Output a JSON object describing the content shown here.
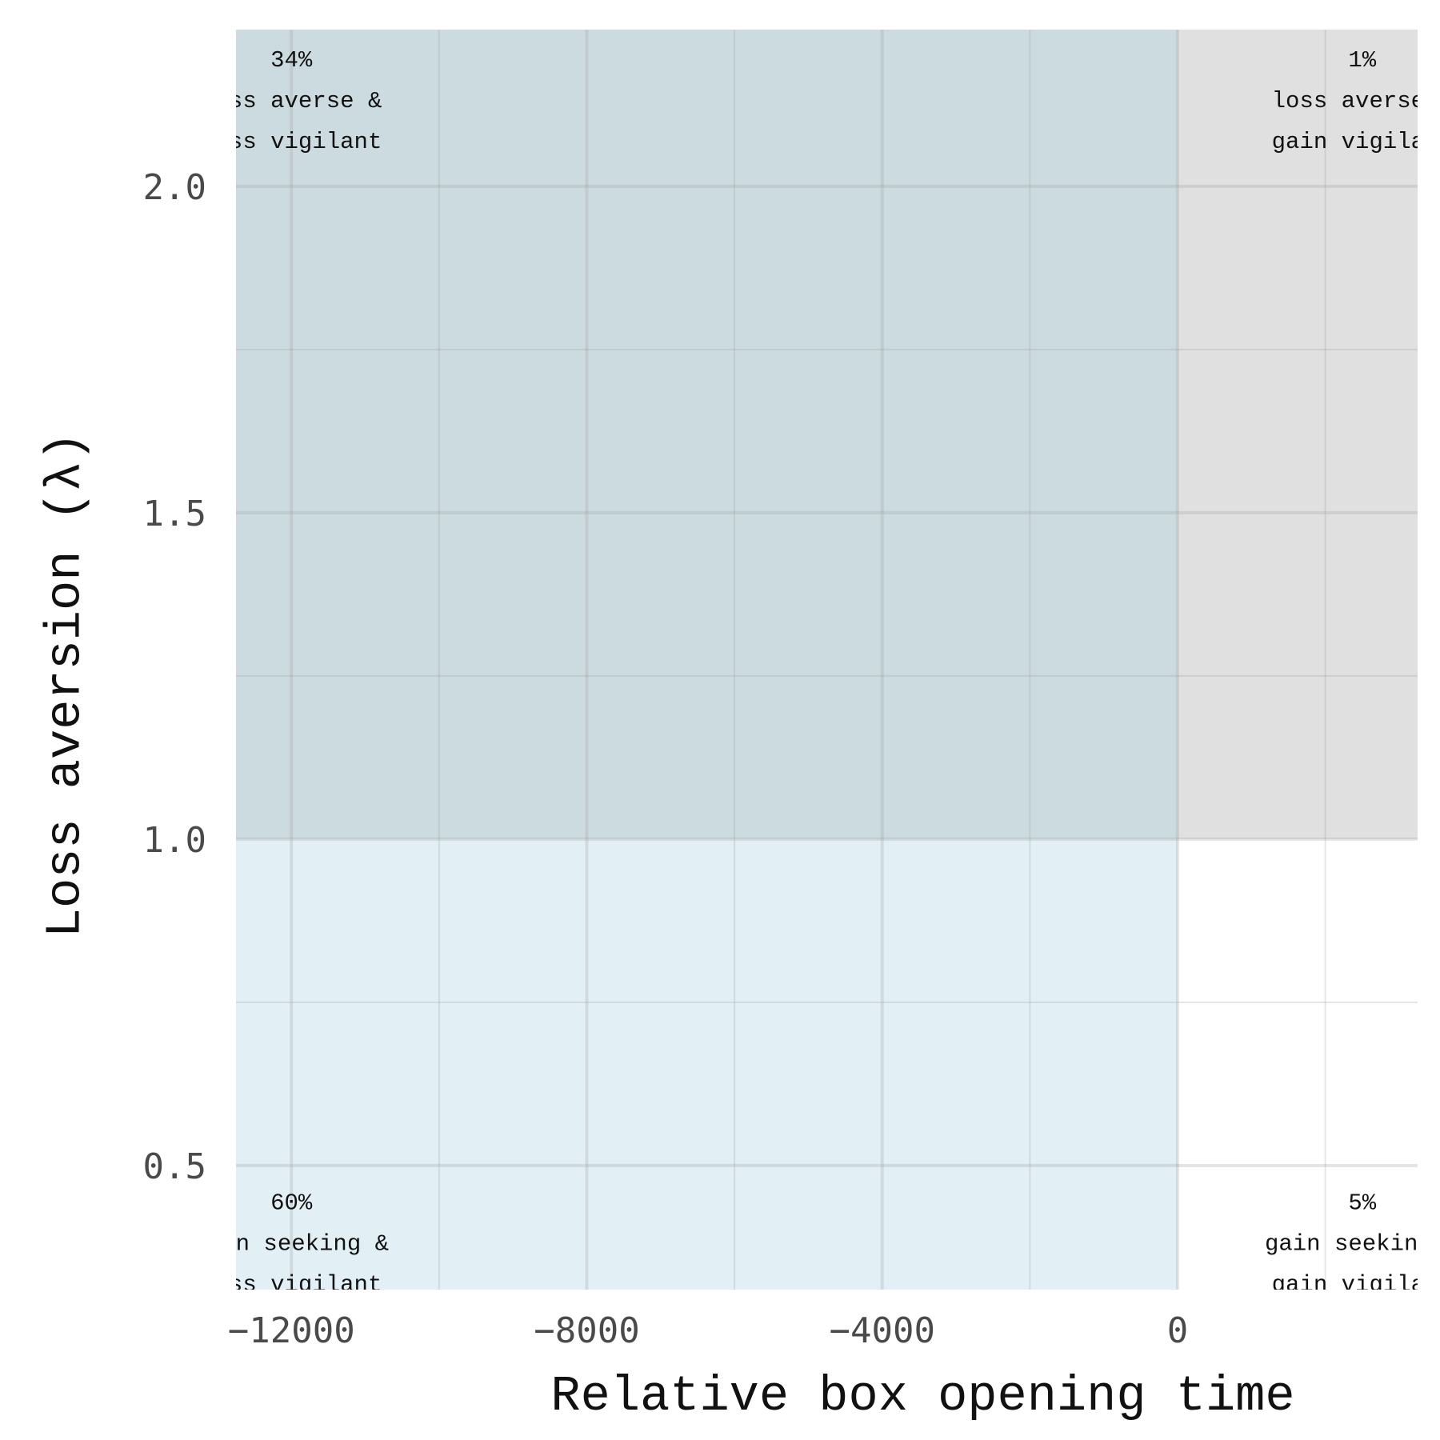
{
  "chart_data": {
    "type": "heatmap",
    "xlabel": "Relative box opening time",
    "ylabel": "Loss aversion (λ)",
    "xlim": [
      -12750,
      3250
    ],
    "ylim": [
      0.31,
      2.24
    ],
    "x_ticks": [
      -12000,
      -8000,
      -4000,
      0
    ],
    "x_tick_labels": [
      "−12000",
      "−8000",
      "−4000",
      "0"
    ],
    "x_minor": [
      -10000,
      -6000,
      -2000,
      2000
    ],
    "y_ticks": [
      0.5,
      1.0,
      1.5,
      2.0
    ],
    "y_tick_labels": [
      "0.5",
      "1.0",
      "1.5",
      "2.0"
    ],
    "y_minor": [
      0.75,
      1.25,
      1.75
    ],
    "grid": true,
    "regions": [
      {
        "x": [
          -12750,
          0
        ],
        "y": [
          1.0,
          2.24
        ],
        "color": "#ccdbe0"
      },
      {
        "x": [
          0,
          3250
        ],
        "y": [
          1.0,
          2.24
        ],
        "color": "#e0e0e0"
      },
      {
        "x": [
          -12750,
          0
        ],
        "y": [
          0.31,
          1.0
        ],
        "color": "#e2f0f5"
      },
      {
        "x": [
          0,
          3250
        ],
        "y": [
          0.31,
          1.0
        ],
        "color": "#ffffff"
      }
    ],
    "annotations": [
      {
        "x": -12000,
        "y": 2.225,
        "lines": [
          "34%",
          "loss averse &",
          "loss vigilant"
        ]
      },
      {
        "x": 2500,
        "y": 2.225,
        "lines": [
          "1%",
          "loss averse &",
          "gain vigilant"
        ]
      },
      {
        "x": -12000,
        "y": 0.475,
        "lines": [
          "60%",
          "gain seeking &",
          "loss vigilant"
        ]
      },
      {
        "x": 2500,
        "y": 0.475,
        "lines": [
          "5%",
          "gain seeking &",
          "gain vigilant"
        ]
      }
    ]
  }
}
